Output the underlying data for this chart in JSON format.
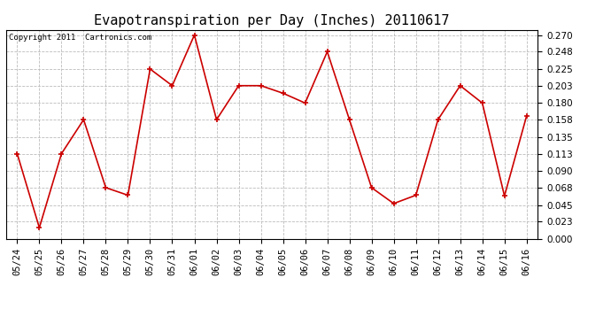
{
  "title": "Evapotranspiration per Day (Inches) 20110617",
  "copyright": "Copyright 2011  Cartronics.com",
  "dates": [
    "05/24",
    "05/25",
    "05/26",
    "05/27",
    "05/28",
    "05/29",
    "05/30",
    "05/31",
    "06/01",
    "06/02",
    "06/03",
    "06/04",
    "06/05",
    "06/06",
    "06/07",
    "06/08",
    "06/09",
    "06/10",
    "06/11",
    "06/12",
    "06/13",
    "06/14",
    "06/15",
    "06/16"
  ],
  "values": [
    0.113,
    0.015,
    0.113,
    0.158,
    0.068,
    0.058,
    0.225,
    0.203,
    0.27,
    0.158,
    0.203,
    0.203,
    0.193,
    0.18,
    0.248,
    0.158,
    0.068,
    0.047,
    0.058,
    0.158,
    0.203,
    0.18,
    0.057,
    0.163
  ],
  "line_color": "#cc0000",
  "marker": "+",
  "marker_color": "#cc0000",
  "bg_color": "#ffffff",
  "plot_bg_color": "#ffffff",
  "grid_color": "#bbbbbb",
  "ylim": [
    0.0,
    0.2768
  ],
  "yticks": [
    0.0,
    0.023,
    0.045,
    0.068,
    0.09,
    0.113,
    0.135,
    0.158,
    0.18,
    0.203,
    0.225,
    0.248,
    0.27
  ],
  "title_fontsize": 11,
  "copyright_fontsize": 6.5,
  "tick_fontsize": 7.5
}
